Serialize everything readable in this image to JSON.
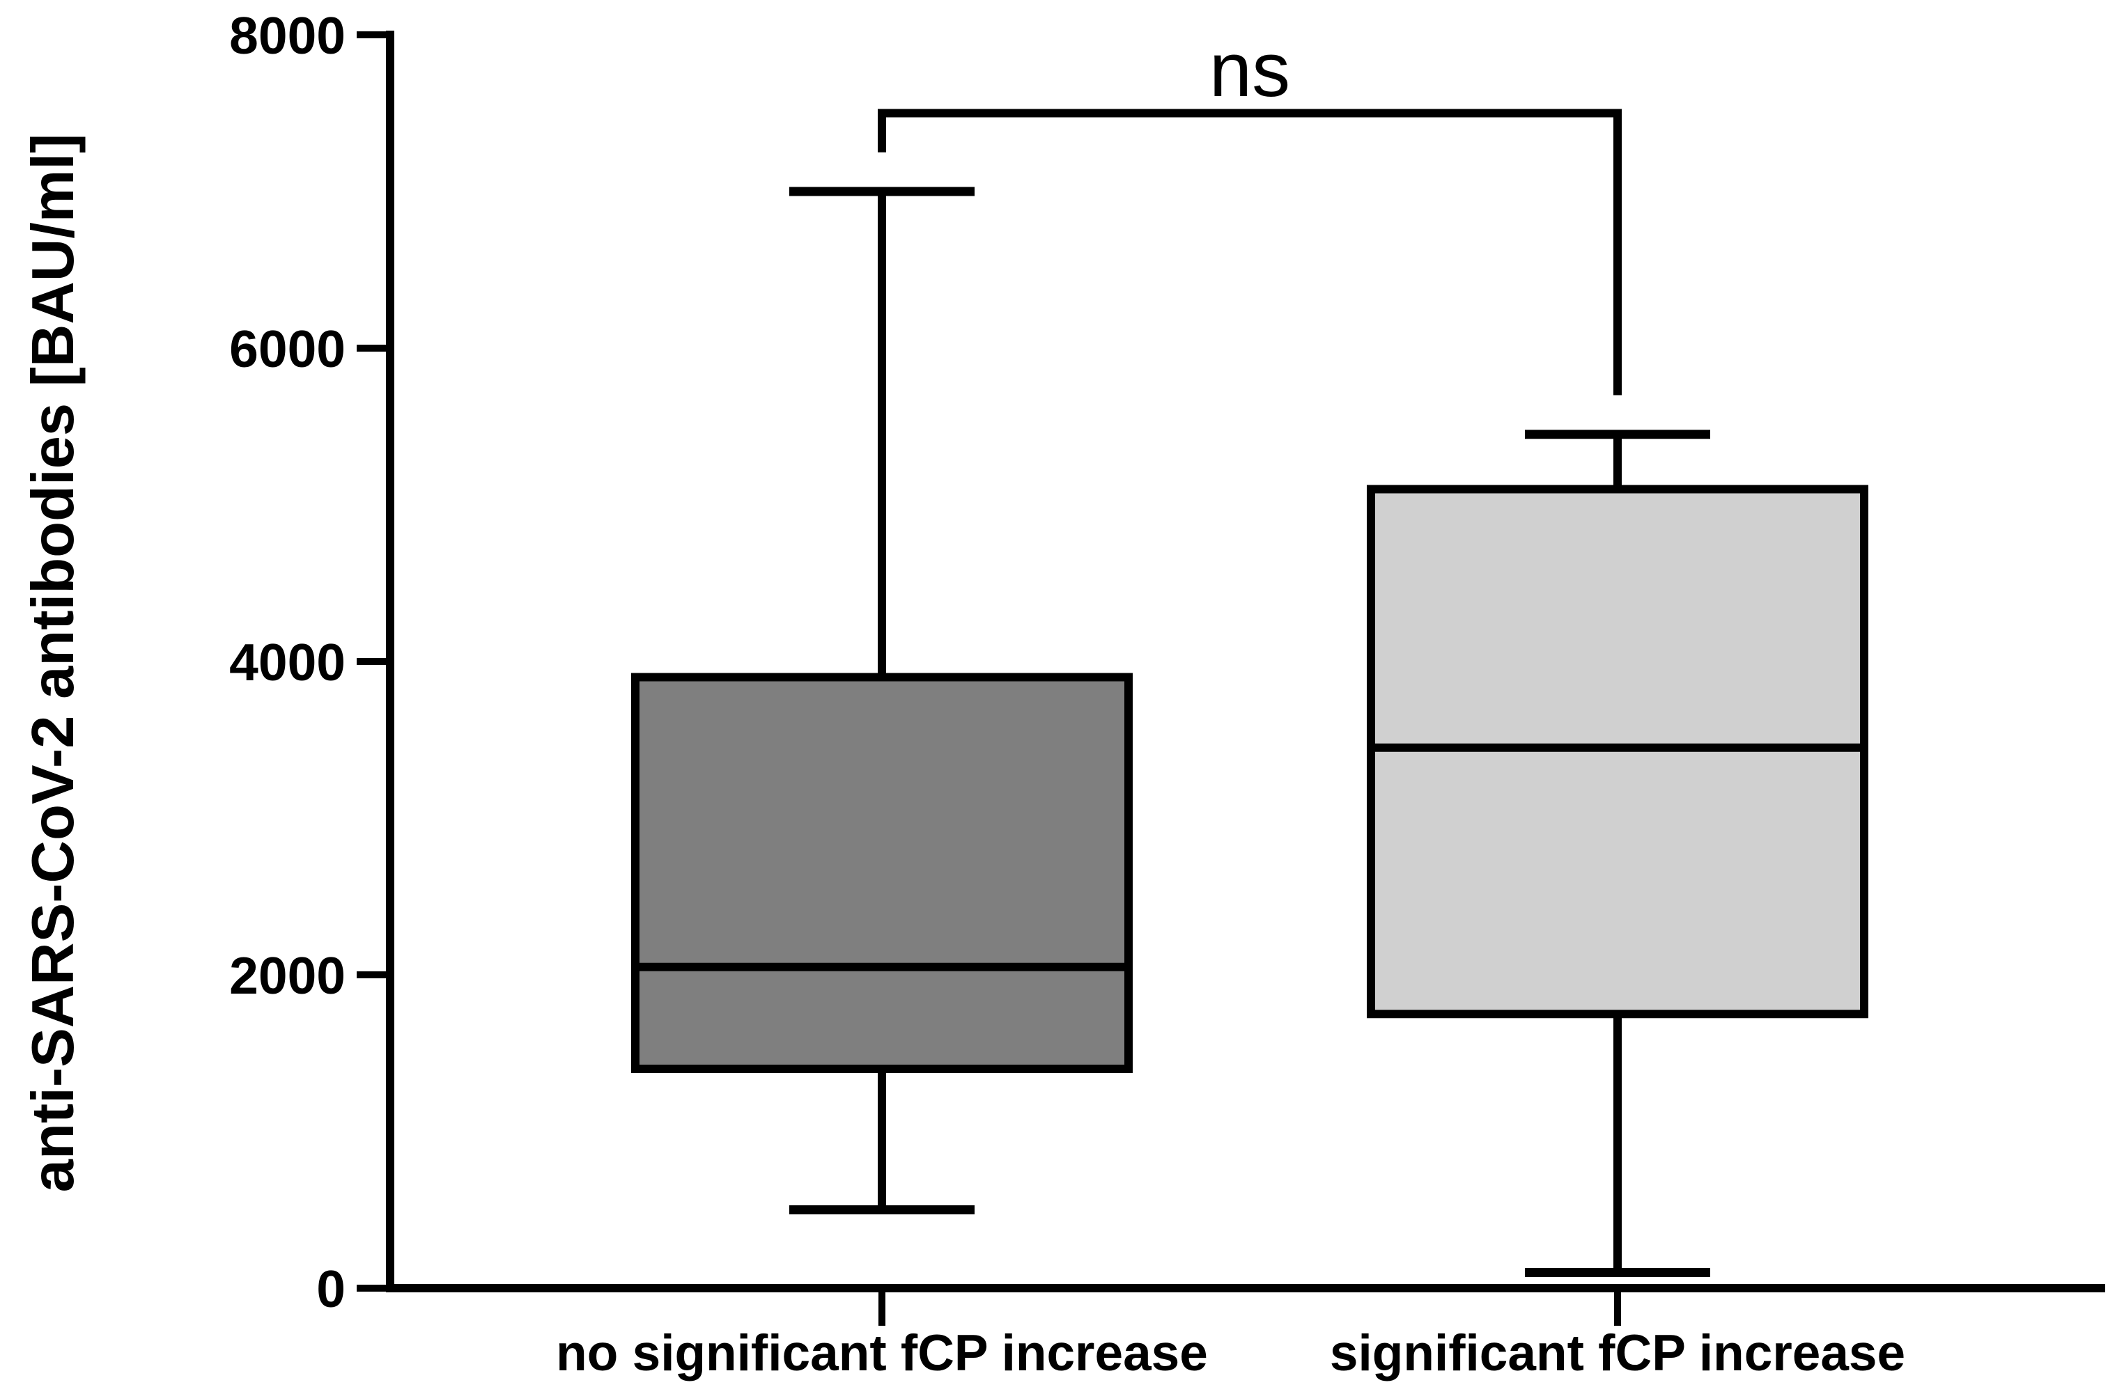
{
  "figure": {
    "background": "#ffffff",
    "line_color": "#000000",
    "significance_label": "ns"
  },
  "chart_data": {
    "type": "boxplot",
    "title": "",
    "xlabel": "",
    "ylabel": "anti-SARS-CoV-2 antibodies [BAU/ml]",
    "ylim": [
      0,
      8000
    ],
    "yticks": [
      0,
      2000,
      4000,
      6000,
      8000
    ],
    "grid": false,
    "legend": false,
    "categories": [
      "no significant fCP increase",
      "significant fCP increase"
    ],
    "series": [
      {
        "name": "no significant fCP increase",
        "box_color": "#7f7f7f",
        "whisker_min": 500,
        "q1": 1400,
        "median": 2050,
        "q3": 3900,
        "whisker_max": 7000
      },
      {
        "name": "significant fCP increase",
        "box_color": "#d0d0d0",
        "whisker_min": 100,
        "q1": 1750,
        "median": 3450,
        "q3": 5100,
        "whisker_max": 5450
      }
    ],
    "annotation": {
      "text": "ns",
      "type": "significance-bracket",
      "bar_value": 7500,
      "left_arm_end_value": 7250,
      "right_arm_end_value": 5700
    }
  }
}
